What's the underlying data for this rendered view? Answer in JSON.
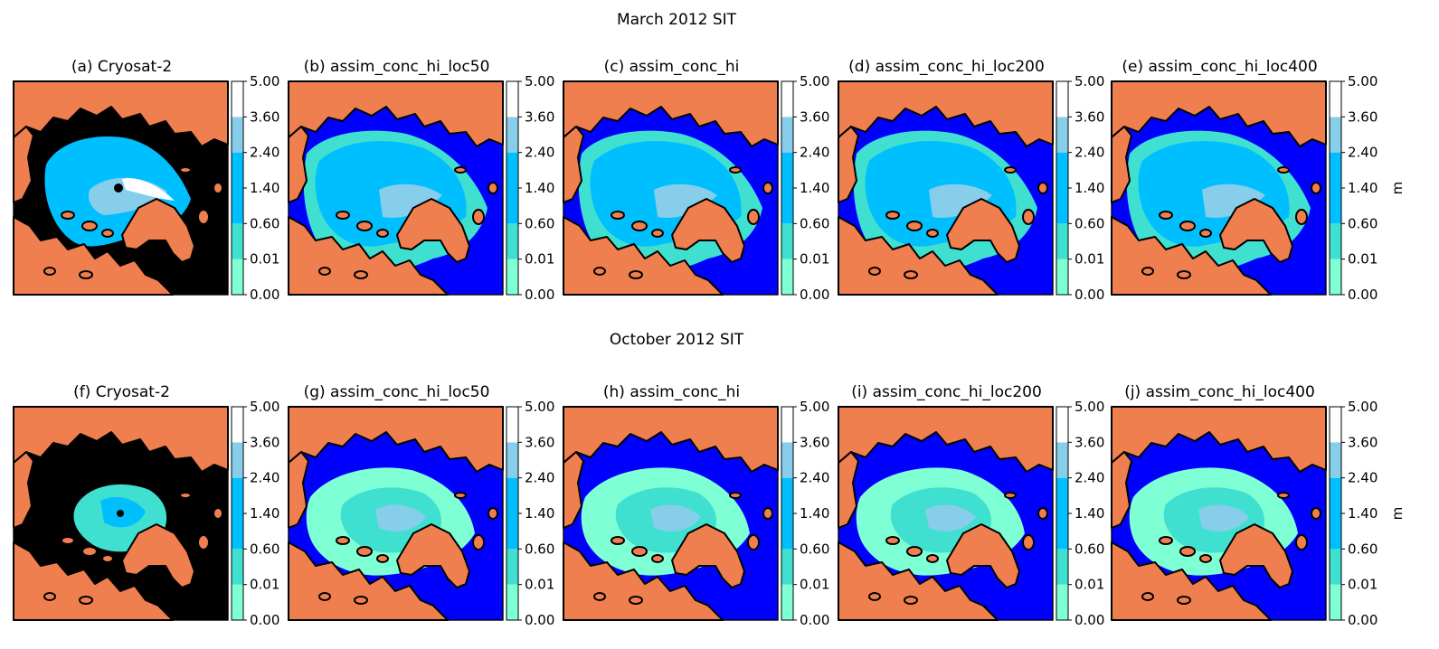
{
  "rows": [
    {
      "title": "March 2012 SIT",
      "panels": [
        {
          "title": "(a) Cryosat-2",
          "kind": "obs",
          "season": "march"
        },
        {
          "title": "(b) assim_conc_hi_loc50",
          "kind": "model",
          "season": "march"
        },
        {
          "title": "(c) assim_conc_hi",
          "kind": "model",
          "season": "march"
        },
        {
          "title": "(d) assim_conc_hi_loc200",
          "kind": "model",
          "season": "march"
        },
        {
          "title": "(e) assim_conc_hi_loc400",
          "kind": "model",
          "season": "march"
        }
      ]
    },
    {
      "title": "October 2012 SIT",
      "panels": [
        {
          "title": "(f) Cryosat-2",
          "kind": "obs",
          "season": "october"
        },
        {
          "title": "(g) assim_conc_hi_loc50",
          "kind": "model",
          "season": "october"
        },
        {
          "title": "(h) assim_conc_hi",
          "kind": "model",
          "season": "october"
        },
        {
          "title": "(i) assim_conc_hi_loc200",
          "kind": "model",
          "season": "october"
        },
        {
          "title": "(j) assim_conc_hi_loc400",
          "kind": "model",
          "season": "october"
        }
      ]
    }
  ],
  "colorbar": {
    "ticks": [
      "0.00",
      "0.01",
      "0.60",
      "1.40",
      "2.40",
      "3.60",
      "5.00"
    ],
    "colors": [
      "#0000ff",
      "#7fffd4",
      "#40e0d0",
      "#00bfff",
      "#00bfff",
      "#87ceeb",
      "#ffffff"
    ],
    "unit": "m"
  },
  "map_colors": {
    "land": "#f07f50",
    "no_data": "#000000",
    "open_ocean": "#0000ff"
  }
}
